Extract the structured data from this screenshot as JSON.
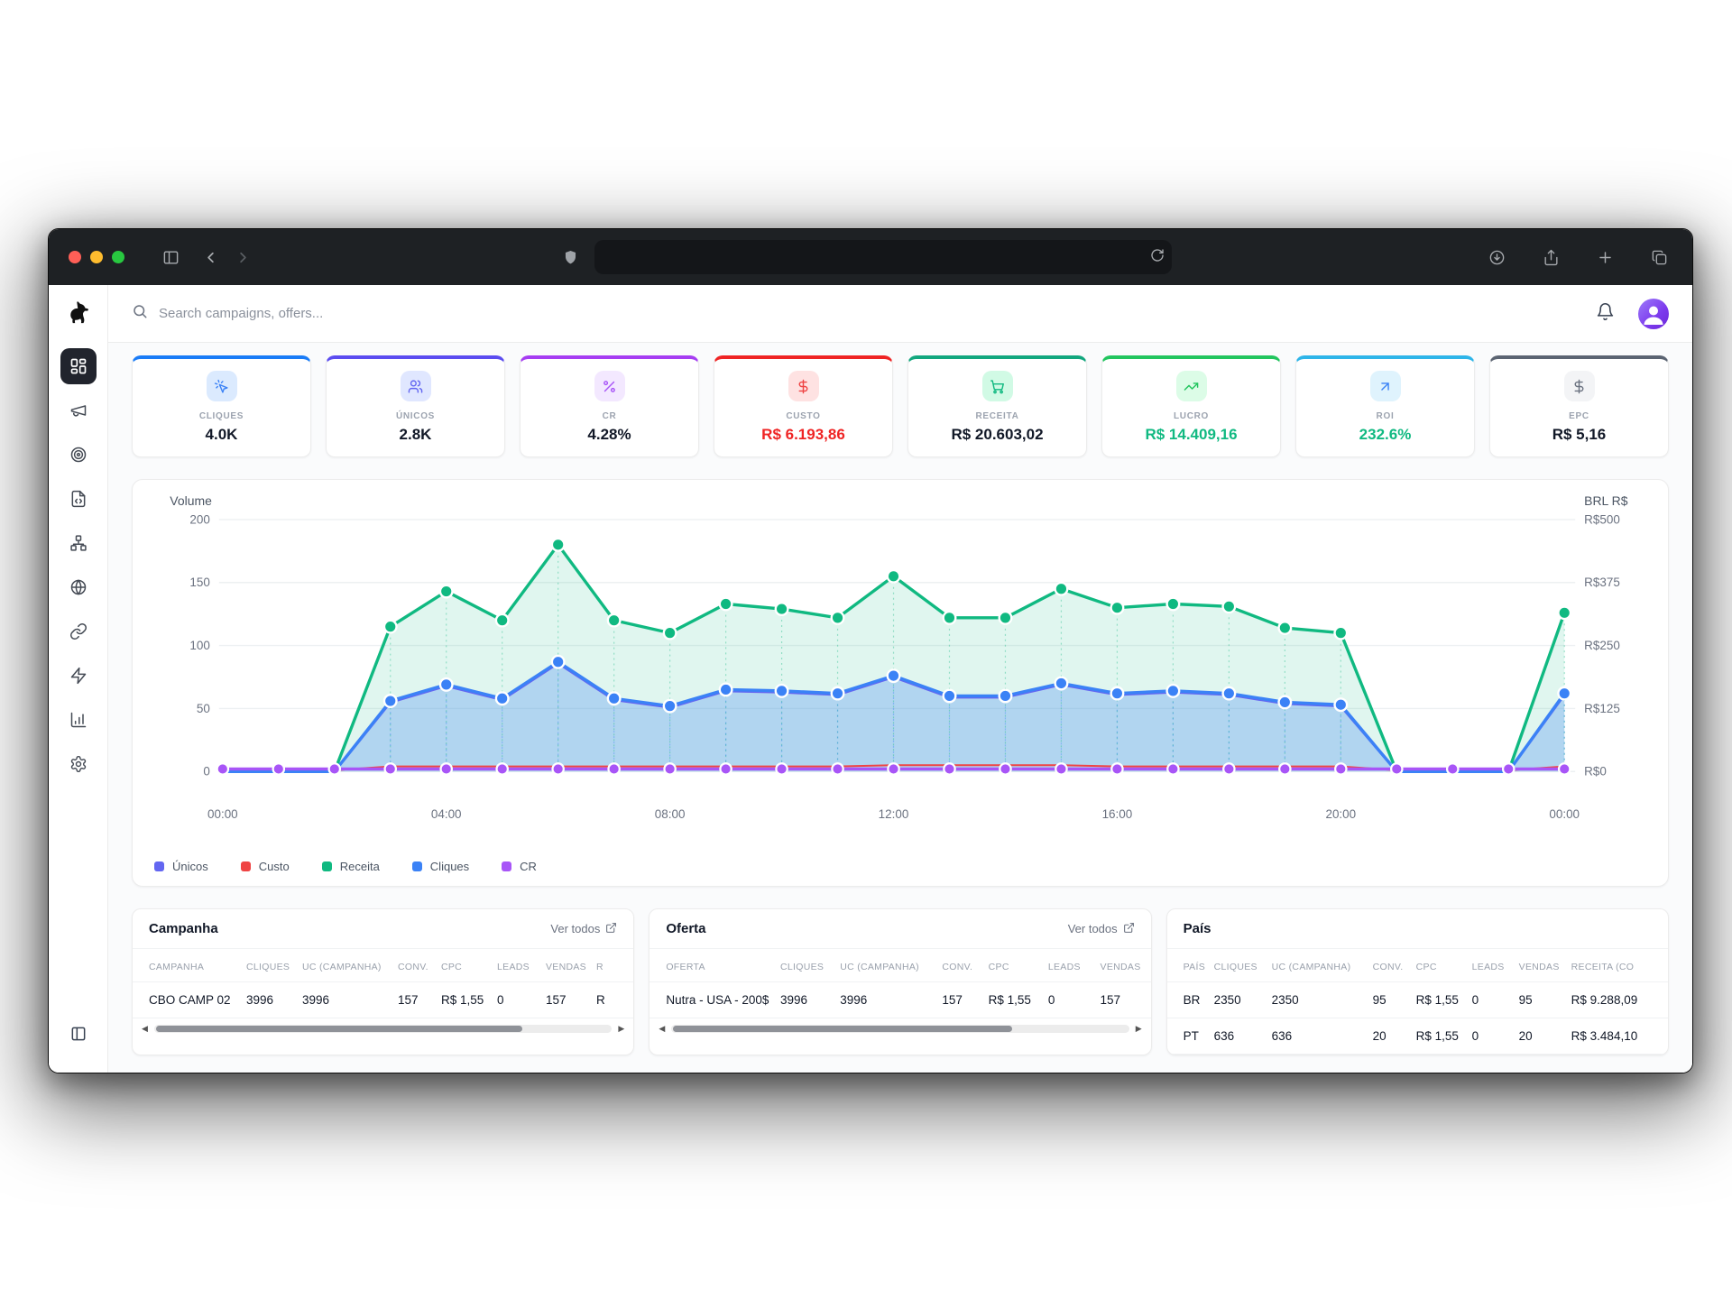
{
  "browser": {
    "traffic_lights": {
      "close": "#ff5f57",
      "minimize": "#febc2e",
      "zoom": "#28c840"
    },
    "toolbar_bg": "#1e2124",
    "url_value": ""
  },
  "header": {
    "search_placeholder": "Search campaigns, offers..."
  },
  "kpis": [
    {
      "label": "CLIQUES",
      "value": "4.0K",
      "accent": "#1a7cf7",
      "chip_bg": "#dbeafe",
      "icon": "mouse-pointer-click-icon",
      "icon_color": "#3b82f6",
      "value_color": "#111827"
    },
    {
      "label": "ÚNICOS",
      "value": "2.8K",
      "accent": "#5b4cf0",
      "chip_bg": "#e0e7ff",
      "icon": "users-icon",
      "icon_color": "#6366f1",
      "value_color": "#111827"
    },
    {
      "label": "CR",
      "value": "4.28%",
      "accent": "#a63df2",
      "chip_bg": "#f3e8ff",
      "icon": "percent-icon",
      "icon_color": "#a855f7",
      "value_color": "#111827"
    },
    {
      "label": "CUSTO",
      "value": "R$ 6.193,86",
      "accent": "#ef2424",
      "chip_bg": "#fee2e2",
      "icon": "dollar-icon",
      "icon_color": "#ef4444",
      "value_color": "#ef2424"
    },
    {
      "label": "RECEITA",
      "value": "R$ 20.603,02",
      "accent": "#12a77e",
      "chip_bg": "#d1fae5",
      "icon": "shopping-cart-icon",
      "icon_color": "#10b981",
      "value_color": "#111827"
    },
    {
      "label": "LUCRO",
      "value": "R$ 14.409,16",
      "accent": "#22c55e",
      "chip_bg": "#dcfce7",
      "icon": "trending-up-icon",
      "icon_color": "#22c55e",
      "value_color": "#10b981"
    },
    {
      "label": "ROI",
      "value": "232.6%",
      "accent": "#2eb5e9",
      "chip_bg": "#dff3fd",
      "icon": "arrow-up-right-icon",
      "icon_color": "#3b82f6",
      "value_color": "#10b981"
    },
    {
      "label": "EPC",
      "value": "R$ 5,16",
      "accent": "#5b6472",
      "chip_bg": "#f3f4f6",
      "icon": "dollar-icon",
      "icon_color": "#6b7280",
      "value_color": "#111827"
    }
  ],
  "chart_data": {
    "type": "line",
    "x_hour_labels": [
      "00:00",
      "04:00",
      "08:00",
      "12:00",
      "16:00",
      "20:00",
      "00:00"
    ],
    "points_per_series": 25,
    "left_axis": {
      "title": "Volume",
      "ticks": [
        0,
        50,
        100,
        150,
        200
      ],
      "max": 200
    },
    "right_axis": {
      "title": "BRL R$",
      "ticks": [
        "R$0",
        "R$125",
        "R$250",
        "R$375",
        "R$500"
      ]
    },
    "grid": "horizontal",
    "legend_position": "bottom",
    "series": [
      {
        "name": "Únicos",
        "color": "#6366f1",
        "values": [
          0,
          0,
          0,
          55,
          68,
          57,
          86,
          57,
          51,
          64,
          63,
          61,
          75,
          59,
          59,
          69,
          61,
          63,
          61,
          54,
          52,
          0,
          0,
          0,
          61
        ]
      },
      {
        "name": "Custo",
        "color": "#ef4444",
        "values": [
          1,
          1,
          1,
          4,
          4,
          4,
          4,
          4,
          4,
          4,
          4,
          4,
          5,
          5,
          5,
          5,
          4,
          4,
          4,
          4,
          4,
          1,
          1,
          1,
          4
        ]
      },
      {
        "name": "Receita",
        "color": "#10b981",
        "fill": "rgba(16,185,129,0.13)",
        "values": [
          0,
          0,
          0,
          115,
          143,
          120,
          180,
          120,
          110,
          133,
          129,
          122,
          155,
          122,
          122,
          145,
          130,
          133,
          131,
          114,
          110,
          0,
          0,
          0,
          126
        ]
      },
      {
        "name": "Cliques",
        "color": "#3b82f6",
        "fill": "rgba(59,130,246,0.28)",
        "values": [
          0,
          0,
          0,
          56,
          69,
          58,
          87,
          58,
          52,
          65,
          64,
          62,
          76,
          60,
          60,
          70,
          62,
          64,
          62,
          55,
          53,
          0,
          0,
          0,
          62
        ]
      },
      {
        "name": "CR",
        "color": "#a855f7",
        "values": [
          2,
          2,
          2,
          2,
          2,
          2,
          2,
          2,
          2,
          2,
          2,
          2,
          2,
          2,
          2,
          2,
          2,
          2,
          2,
          2,
          2,
          2,
          2,
          2,
          2
        ]
      }
    ]
  },
  "tables": [
    {
      "title": "Campanha",
      "link_label": "Ver todos",
      "columns": [
        "CAMPANHA",
        "CLIQUES",
        "UC (CAMPANHA)",
        "CONV.",
        "CPC",
        "LEADS",
        "VENDAS",
        "R"
      ],
      "rows": [
        [
          "CBO CAMP 02",
          "3996",
          "3996",
          "157",
          "R$ 1,55",
          "0",
          "157",
          "R"
        ]
      ],
      "scrollbar_thumb_pct": 80
    },
    {
      "title": "Oferta",
      "link_label": "Ver todos",
      "columns": [
        "OFERTA",
        "CLIQUES",
        "UC (CAMPANHA)",
        "CONV.",
        "CPC",
        "LEADS",
        "VENDAS"
      ],
      "rows": [
        [
          "Nutra - USA - 200$",
          "3996",
          "3996",
          "157",
          "R$ 1,55",
          "0",
          "157"
        ]
      ],
      "scrollbar_thumb_pct": 74
    },
    {
      "title": "País",
      "columns": [
        "PAÍS",
        "CLIQUES",
        "UC (CAMPANHA)",
        "CONV.",
        "CPC",
        "LEADS",
        "VENDAS",
        "RECEITA (CO"
      ],
      "rows": [
        [
          "BR",
          "2350",
          "2350",
          "95",
          "R$ 1,55",
          "0",
          "95",
          "R$ 9.288,09"
        ],
        [
          "PT",
          "636",
          "636",
          "20",
          "R$ 1,55",
          "0",
          "20",
          "R$ 3.484,10"
        ]
      ]
    }
  ]
}
